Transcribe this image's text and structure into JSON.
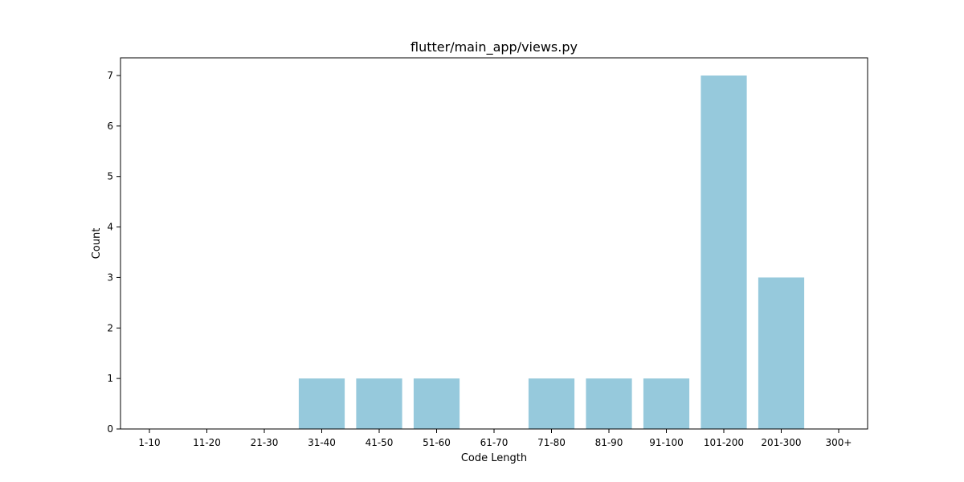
{
  "chart_data": {
    "type": "bar",
    "title": "flutter/main_app/views.py",
    "xlabel": "Code Length",
    "ylabel": "Count",
    "categories": [
      "1-10",
      "11-20",
      "21-30",
      "31-40",
      "41-50",
      "51-60",
      "61-70",
      "71-80",
      "81-90",
      "91-100",
      "101-200",
      "201-300",
      "300+"
    ],
    "values": [
      0,
      0,
      0,
      1,
      1,
      1,
      0,
      1,
      1,
      1,
      7,
      3,
      0
    ],
    "ylim": [
      0,
      7.35
    ],
    "yticks": [
      0,
      1,
      2,
      3,
      4,
      5,
      6,
      7
    ],
    "grid": false,
    "legend": "none",
    "bar_color": "#96c9dc"
  }
}
